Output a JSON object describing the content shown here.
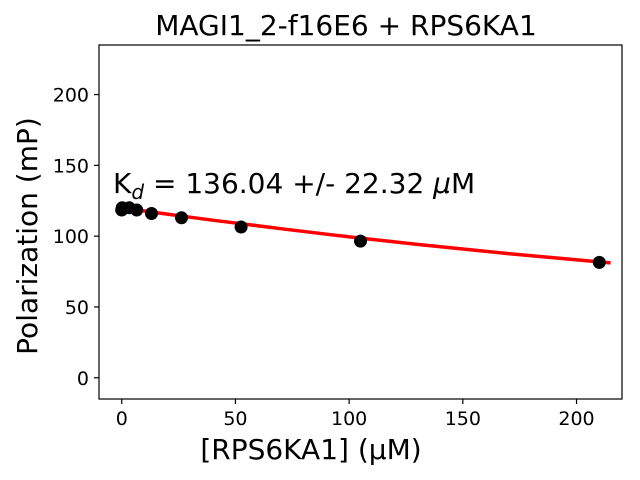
{
  "chart_data": {
    "type": "scatter",
    "title": "MAGI1_2-f16E6 + RPS6KA1",
    "xlabel": "[RPS6KA1] (µM)",
    "ylabel": "Polarization (mP)",
    "xlim": [
      -10,
      220
    ],
    "ylim": [
      -15,
      235
    ],
    "xticks": [
      0,
      50,
      100,
      150,
      200
    ],
    "yticks": [
      0,
      50,
      100,
      150,
      200
    ],
    "grid": false,
    "annotation": {
      "prefix": "K",
      "subscript": "d",
      "text": " = 136.04 +/- 22.32 ",
      "unit_symbol": "μ",
      "unit": "M"
    },
    "series": [
      {
        "kind": "points",
        "color": "#000000",
        "x": [
          0,
          0.2,
          3.3,
          6.6,
          13.1,
          26.3,
          52.5,
          105,
          210
        ],
        "y": [
          118.5,
          120.0,
          120.0,
          118.5,
          116.0,
          113.0,
          106.5,
          96.5,
          81.5
        ]
      },
      {
        "kind": "fit",
        "color": "#ff0000",
        "x": [
          0,
          10,
          20,
          30,
          40,
          52.5,
          70,
          90,
          105,
          130,
          150,
          170,
          190,
          210,
          215
        ],
        "y": [
          120.0,
          117.8,
          115.6,
          113.4,
          111.3,
          108.8,
          105.3,
          101.4,
          98.6,
          94.2,
          90.9,
          87.7,
          84.7,
          81.8,
          81.1
        ]
      }
    ]
  }
}
